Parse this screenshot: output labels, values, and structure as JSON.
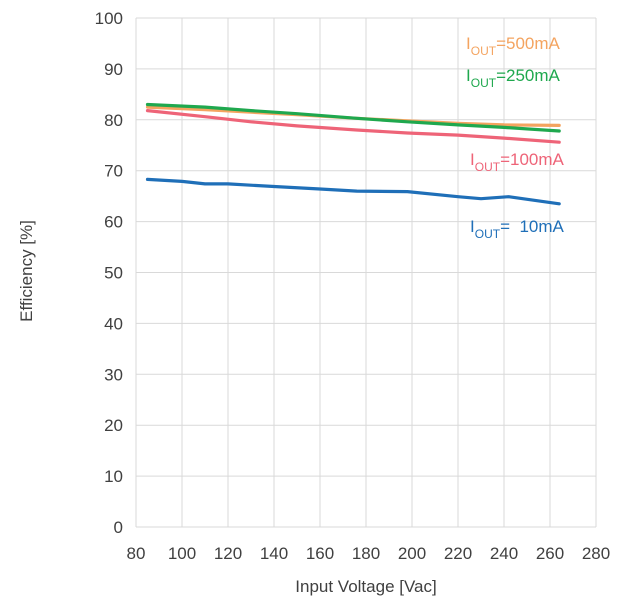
{
  "chart_data": {
    "type": "line",
    "xlabel": "Input Voltage [Vac]",
    "ylabel": "Efficiency [%]",
    "xlim": [
      80,
      280
    ],
    "ylim": [
      0,
      100
    ],
    "x_ticks": [
      80,
      100,
      120,
      140,
      160,
      180,
      200,
      220,
      240,
      260,
      280
    ],
    "y_ticks": [
      0,
      10,
      20,
      30,
      40,
      50,
      60,
      70,
      80,
      90,
      100
    ],
    "grid": true,
    "series": [
      {
        "name": "IOUT=500mA",
        "label_main": "I",
        "label_sub": "OUT",
        "label_rest": "=500mA",
        "color": "#f4a460",
        "x": [
          85,
          110,
          130,
          150,
          176,
          198,
          220,
          240,
          264
        ],
        "y": [
          82.5,
          82.0,
          81.5,
          81.0,
          80.3,
          79.8,
          79.3,
          79.0,
          78.9
        ]
      },
      {
        "name": "IOUT=250mA",
        "label_main": "I",
        "label_sub": "OUT",
        "label_rest": "=250mA",
        "color": "#1fa84e",
        "x": [
          85,
          110,
          130,
          150,
          176,
          198,
          220,
          240,
          264
        ],
        "y": [
          83.0,
          82.5,
          81.8,
          81.2,
          80.3,
          79.6,
          79.0,
          78.5,
          77.8
        ]
      },
      {
        "name": "IOUT=100mA",
        "label_main": "I",
        "label_sub": "OUT",
        "label_rest": "=100mA",
        "color": "#ee6478",
        "x": [
          85,
          110,
          130,
          150,
          176,
          198,
          220,
          240,
          264
        ],
        "y": [
          81.8,
          80.6,
          79.6,
          78.8,
          78.0,
          77.4,
          77.0,
          76.4,
          75.6
        ]
      },
      {
        "name": "IOUT=  10mA",
        "label_main": "I",
        "label_sub": "OUT",
        "label_rest": "=  10mA",
        "color": "#1f6fb8",
        "x": [
          85,
          100,
          110,
          120,
          140,
          160,
          176,
          198,
          220,
          230,
          242,
          264
        ],
        "y": [
          68.3,
          67.9,
          67.4,
          67.4,
          66.9,
          66.4,
          66.0,
          65.9,
          64.9,
          64.5,
          64.9,
          63.5
        ]
      }
    ],
    "label_positions": [
      "top-right",
      "top-right",
      "right",
      "right"
    ]
  }
}
